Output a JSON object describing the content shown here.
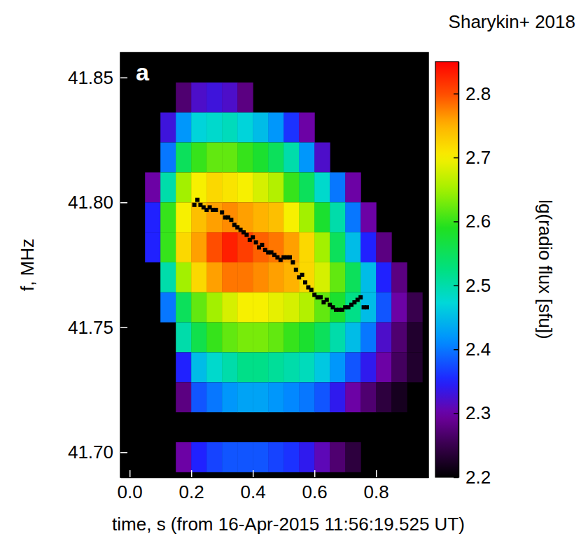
{
  "chart_data": {
    "type": "heatmap",
    "credit": "Sharykin+ 2018",
    "panel_label": "a",
    "xlabel": "time, s (from 16-Apr-2015 11:56:19.525 UT)",
    "ylabel": "f, MHz",
    "xlim": [
      -0.03,
      0.97
    ],
    "ylim": [
      41.69,
      41.86
    ],
    "xticks": [
      {
        "value": 0,
        "label": "0.0"
      },
      {
        "value": 0.2,
        "label": "0.2"
      },
      {
        "value": 0.4,
        "label": "0.4"
      },
      {
        "value": 0.6,
        "label": "0.6"
      },
      {
        "value": 0.8,
        "label": "0.8"
      }
    ],
    "yticks": [
      {
        "value": 41.7,
        "label": "41.70"
      },
      {
        "value": 41.75,
        "label": "41.75"
      },
      {
        "value": 41.8,
        "label": "41.80"
      },
      {
        "value": 41.85,
        "label": "41.85"
      }
    ],
    "x_edges": [
      0,
      0.05,
      0.1,
      0.15,
      0.2,
      0.25,
      0.3,
      0.35,
      0.4,
      0.45,
      0.5,
      0.55,
      0.6,
      0.65,
      0.7,
      0.75,
      0.8,
      0.85,
      0.9,
      0.95
    ],
    "y_edges": [
      41.848,
      41.836,
      41.824,
      41.812,
      41.8,
      41.788,
      41.776,
      41.764,
      41.752,
      41.74,
      41.728,
      41.716,
      41.704,
      41.692
    ],
    "z": [
      [
        null,
        null,
        null,
        2.27,
        2.32,
        2.33,
        2.32,
        2.28,
        null,
        null,
        null,
        null,
        null,
        null,
        null,
        null,
        null,
        null,
        null
      ],
      [
        null,
        null,
        2.33,
        2.42,
        2.47,
        2.48,
        2.49,
        2.47,
        2.45,
        2.42,
        2.36,
        2.3,
        null,
        null,
        null,
        null,
        null,
        null,
        null
      ],
      [
        null,
        null,
        2.4,
        2.55,
        2.6,
        2.62,
        2.62,
        2.6,
        2.58,
        2.55,
        2.5,
        2.42,
        2.32,
        null,
        null,
        null,
        null,
        null,
        null
      ],
      [
        null,
        2.3,
        2.5,
        2.65,
        2.7,
        2.72,
        2.71,
        2.7,
        2.68,
        2.66,
        2.6,
        2.55,
        2.48,
        2.4,
        2.3,
        null,
        null,
        null,
        null
      ],
      [
        null,
        2.35,
        2.6,
        2.7,
        2.74,
        2.76,
        2.77,
        2.76,
        2.75,
        2.74,
        2.7,
        2.65,
        2.58,
        2.5,
        2.4,
        2.3,
        null,
        null,
        null
      ],
      [
        null,
        2.35,
        2.6,
        2.72,
        2.76,
        2.8,
        2.83,
        2.81,
        2.79,
        2.78,
        2.76,
        2.72,
        2.65,
        2.55,
        2.45,
        2.35,
        2.28,
        null,
        null
      ],
      [
        null,
        null,
        2.5,
        2.65,
        2.72,
        2.76,
        2.78,
        2.78,
        2.77,
        2.76,
        2.75,
        2.72,
        2.68,
        2.62,
        2.55,
        2.45,
        2.35,
        2.28,
        null
      ],
      [
        null,
        null,
        2.4,
        2.55,
        2.62,
        2.65,
        2.68,
        2.7,
        2.7,
        2.69,
        2.68,
        2.66,
        2.62,
        2.58,
        2.52,
        2.45,
        2.38,
        2.3,
        2.25
      ],
      [
        null,
        null,
        null,
        2.5,
        2.56,
        2.6,
        2.62,
        2.63,
        2.63,
        2.62,
        2.6,
        2.58,
        2.55,
        2.5,
        2.45,
        2.4,
        2.32,
        2.27,
        2.23
      ],
      [
        null,
        null,
        null,
        2.35,
        2.45,
        2.48,
        2.5,
        2.52,
        2.52,
        2.51,
        2.5,
        2.49,
        2.46,
        2.42,
        2.38,
        2.34,
        2.3,
        2.26,
        2.23
      ],
      [
        null,
        null,
        null,
        2.28,
        2.38,
        2.4,
        2.42,
        2.43,
        2.43,
        2.42,
        2.41,
        2.4,
        2.38,
        2.34,
        2.3,
        2.27,
        2.24,
        2.22,
        null
      ],
      [
        null,
        null,
        null,
        null,
        null,
        null,
        null,
        null,
        null,
        null,
        null,
        null,
        null,
        null,
        null,
        null,
        null,
        null,
        null
      ],
      [
        null,
        null,
        null,
        2.3,
        2.35,
        2.37,
        2.38,
        2.38,
        2.38,
        2.37,
        2.36,
        2.34,
        2.31,
        2.27,
        2.24,
        null,
        null,
        null,
        null
      ]
    ],
    "colorbar": {
      "label": "lg(radio flux [sfu])",
      "lim": [
        2.2,
        2.85
      ],
      "ticks": [
        2.2,
        2.3,
        2.4,
        2.5,
        2.6,
        2.7,
        2.8
      ]
    },
    "series": [
      {
        "type": "scatter",
        "marker": "square",
        "color": "#000000",
        "x": [
          0.21,
          0.22,
          0.23,
          0.24,
          0.25,
          0.26,
          0.27,
          0.28,
          0.3,
          0.31,
          0.32,
          0.33,
          0.34,
          0.35,
          0.36,
          0.37,
          0.38,
          0.39,
          0.4,
          0.41,
          0.42,
          0.43,
          0.44,
          0.45,
          0.46,
          0.47,
          0.48,
          0.49,
          0.5,
          0.51,
          0.52,
          0.53,
          0.54,
          0.55,
          0.56,
          0.57,
          0.58,
          0.59,
          0.6,
          0.61,
          0.62,
          0.63,
          0.64,
          0.65,
          0.66,
          0.67,
          0.68,
          0.69,
          0.7,
          0.71,
          0.72,
          0.73,
          0.74,
          0.75,
          0.76,
          0.77
        ],
        "values": [
          41.799,
          41.801,
          41.799,
          41.798,
          41.797,
          41.798,
          41.797,
          41.797,
          41.796,
          41.794,
          41.794,
          41.793,
          41.791,
          41.79,
          41.789,
          41.788,
          41.787,
          41.785,
          41.786,
          41.784,
          41.782,
          41.783,
          41.781,
          41.78,
          41.78,
          41.779,
          41.778,
          41.777,
          41.778,
          41.778,
          41.778,
          41.776,
          41.773,
          41.77,
          41.771,
          41.768,
          41.766,
          41.765,
          41.763,
          41.762,
          41.762,
          41.76,
          41.761,
          41.759,
          41.758,
          41.757,
          41.757,
          41.757,
          41.758,
          41.758,
          41.759,
          41.76,
          41.761,
          41.762,
          41.758,
          41.758
        ]
      }
    ]
  }
}
